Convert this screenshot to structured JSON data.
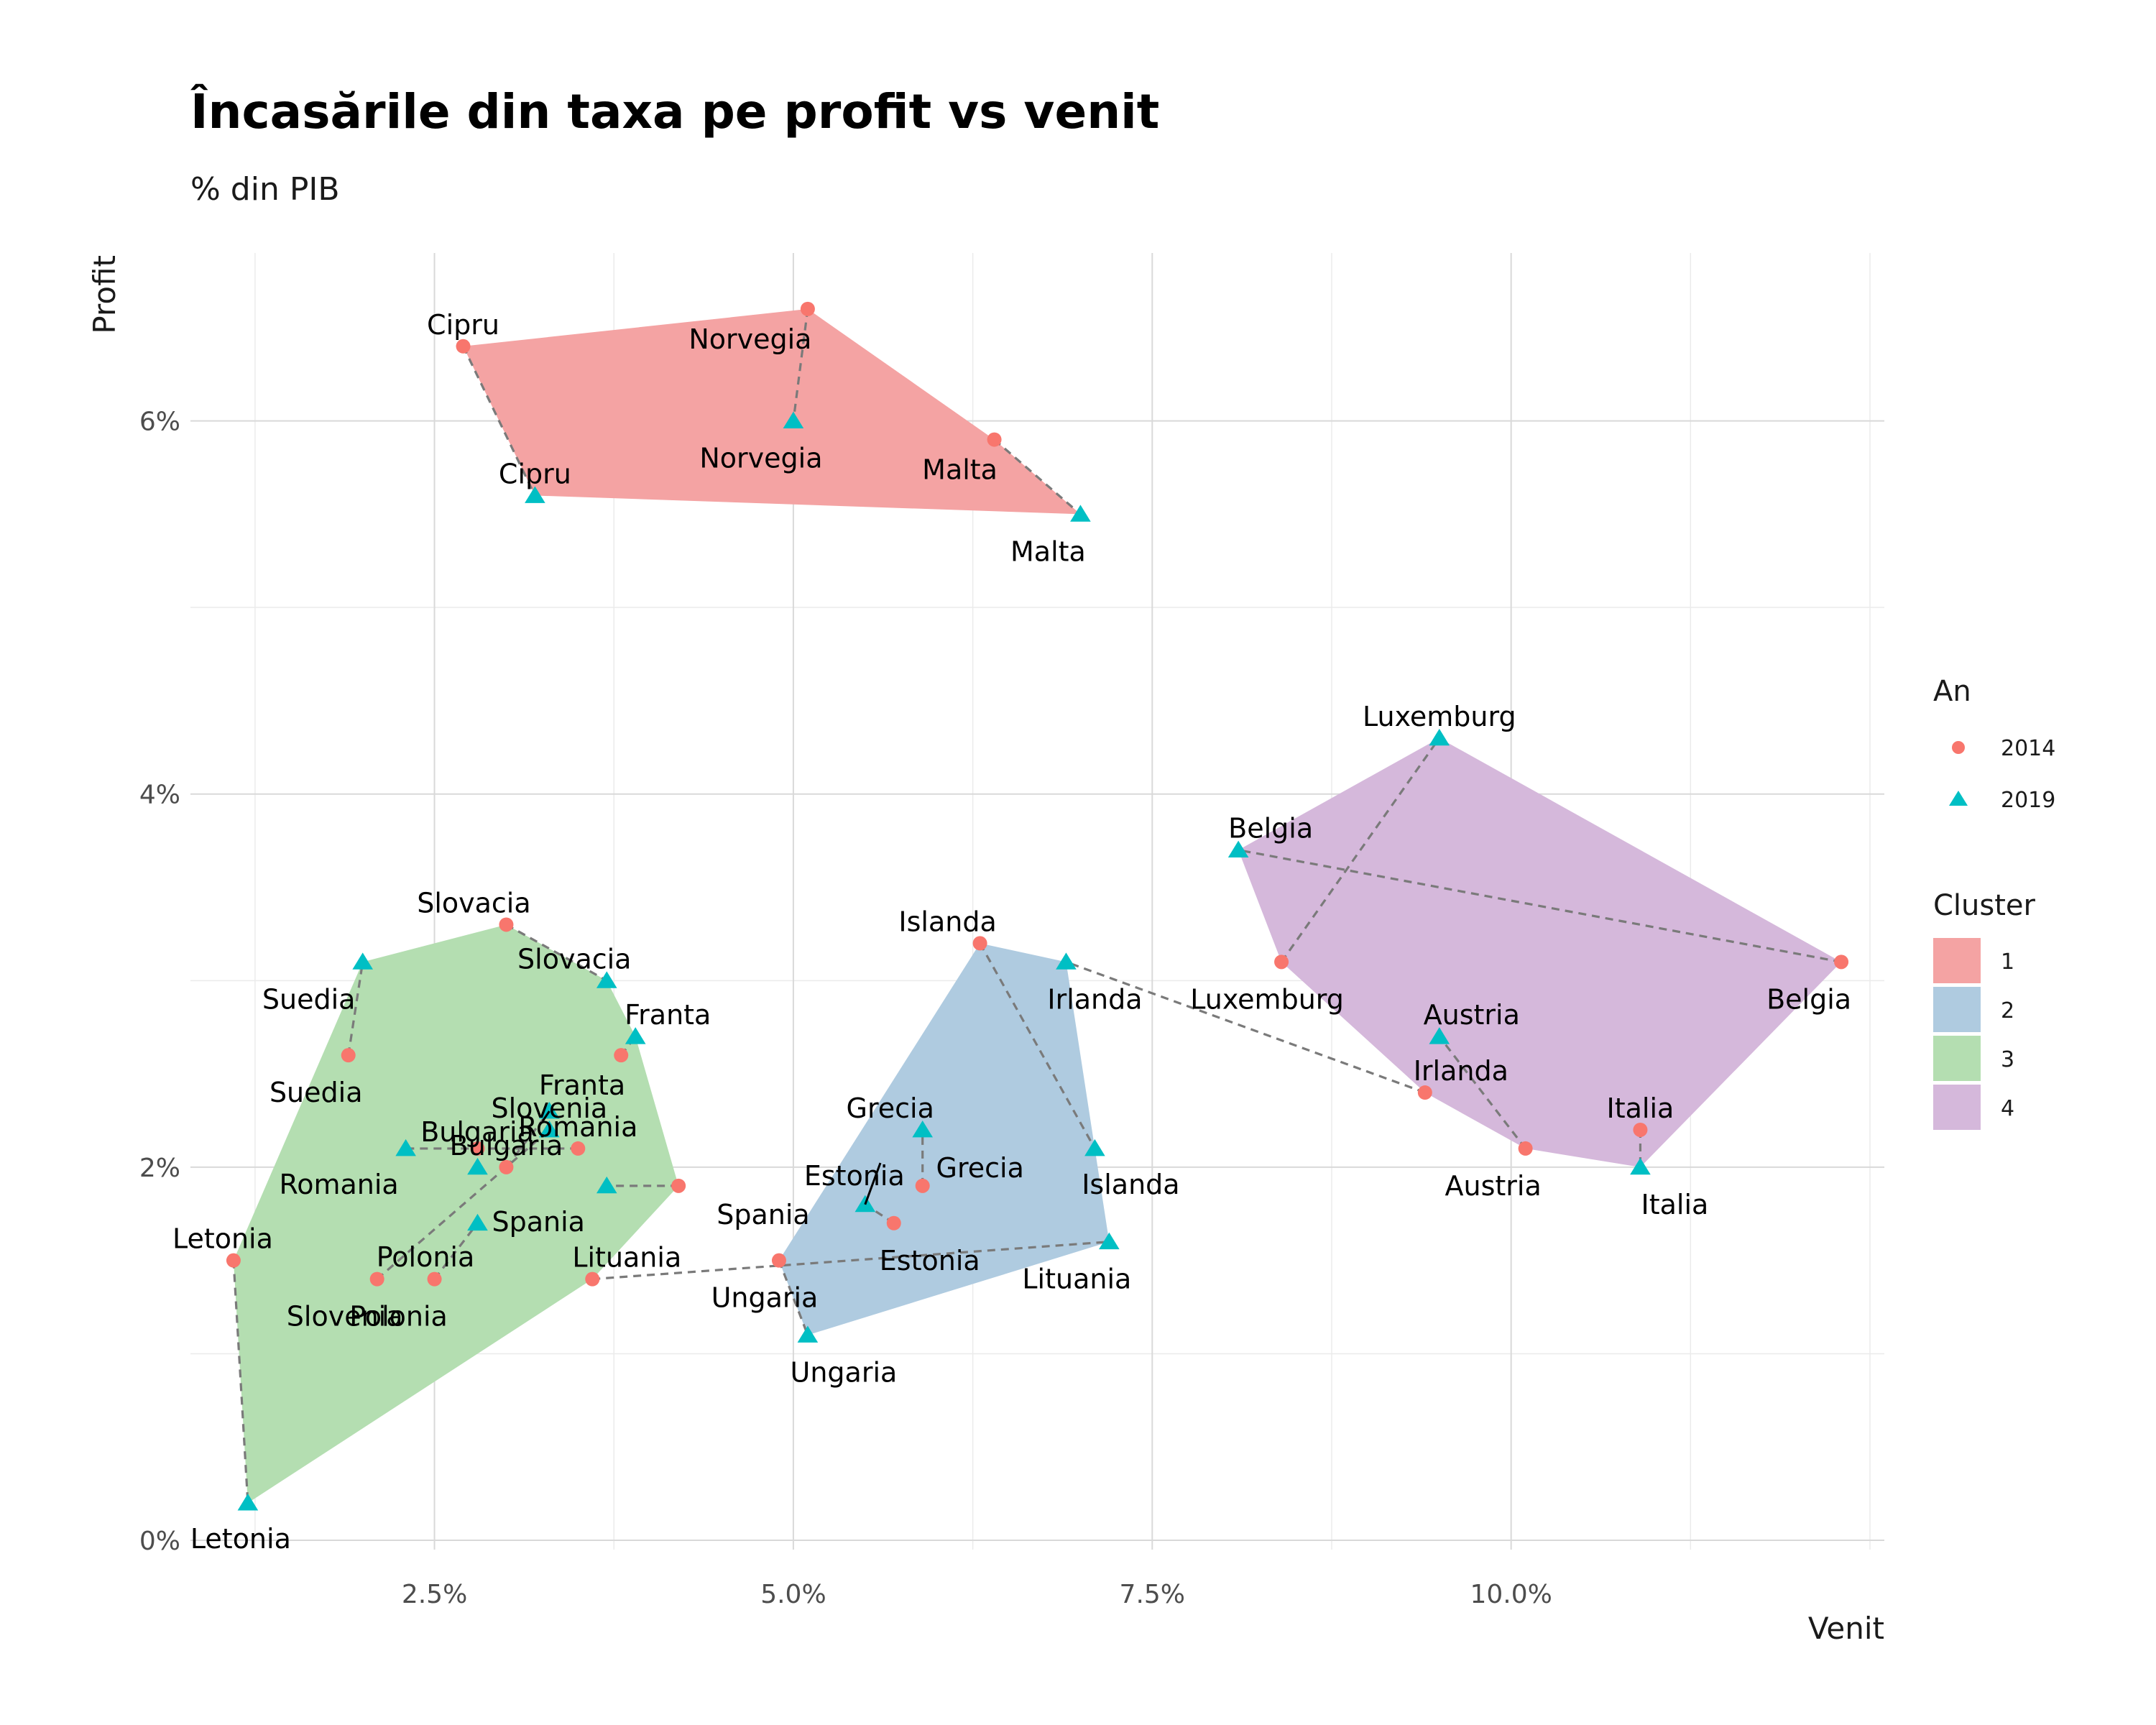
{
  "chart_data": {
    "type": "scatter",
    "title": "Încasările din taxa pe profit vs venit",
    "subtitle": "% din PIB",
    "xlabel": "Venit",
    "ylabel": "Profit",
    "xlim": [
      0.8,
      12.6
    ],
    "ylim": [
      -0.05,
      6.9
    ],
    "x_ticks": [
      2.5,
      5.0,
      7.5,
      10.0
    ],
    "x_tick_labels": [
      "2.5%",
      "5.0%",
      "7.5%",
      "10.0%"
    ],
    "y_ticks": [
      0,
      2,
      4,
      6
    ],
    "y_tick_labels": [
      "0%",
      "2%",
      "4%",
      "6%"
    ],
    "grid": true,
    "legend_an": {
      "title": "An",
      "items": [
        {
          "label": "2014",
          "color": "#F8766D",
          "shape": "circle"
        },
        {
          "label": "2019",
          "color": "#00BFC4",
          "shape": "triangle"
        }
      ]
    },
    "legend_cluster": {
      "title": "Cluster",
      "items": [
        {
          "label": "1",
          "color": "#F4A3A3"
        },
        {
          "label": "2",
          "color": "#AFCBE0"
        },
        {
          "label": "3",
          "color": "#B4DEB1"
        },
        {
          "label": "4",
          "color": "#D5B8DB"
        }
      ]
    },
    "legend_placement": "right",
    "points": [
      {
        "country": "Cipru",
        "year": "2014",
        "venit": 2.7,
        "profit": 6.4,
        "cluster": 1
      },
      {
        "country": "Cipru",
        "year": "2019",
        "venit": 3.2,
        "profit": 5.6,
        "cluster": 1
      },
      {
        "country": "Norvegia",
        "year": "2014",
        "venit": 5.1,
        "profit": 6.6,
        "cluster": 1
      },
      {
        "country": "Norvegia",
        "year": "2019",
        "venit": 5.0,
        "profit": 6.0,
        "cluster": 1
      },
      {
        "country": "Malta",
        "year": "2014",
        "venit": 6.4,
        "profit": 5.9,
        "cluster": 1
      },
      {
        "country": "Malta",
        "year": "2019",
        "venit": 7.0,
        "profit": 5.5,
        "cluster": 1
      },
      {
        "country": "Islanda",
        "year": "2014",
        "venit": 6.3,
        "profit": 3.2,
        "cluster": 2
      },
      {
        "country": "Islanda",
        "year": "2019",
        "venit": 7.1,
        "profit": 2.1,
        "cluster": 2
      },
      {
        "country": "Grecia",
        "year": "2014",
        "venit": 5.9,
        "profit": 1.9,
        "cluster": 2
      },
      {
        "country": "Grecia",
        "year": "2019",
        "venit": 5.9,
        "profit": 2.2,
        "cluster": 2
      },
      {
        "country": "Estonia",
        "year": "2014",
        "venit": 5.7,
        "profit": 1.7,
        "cluster": 2
      },
      {
        "country": "Estonia",
        "year": "2019",
        "venit": 5.5,
        "profit": 1.8,
        "cluster": 2
      },
      {
        "country": "Ungaria",
        "year": "2014",
        "venit": 4.9,
        "profit": 1.5,
        "cluster": 2
      },
      {
        "country": "Ungaria",
        "year": "2019",
        "venit": 5.1,
        "profit": 1.1,
        "cluster": 2
      },
      {
        "country": "Lituania",
        "year": "2014",
        "venit": 3.6,
        "profit": 1.4,
        "cluster": 3
      },
      {
        "country": "Lituania",
        "year": "2019",
        "venit": 7.2,
        "profit": 1.6,
        "cluster": 2
      },
      {
        "country": "Irlanda",
        "year": "2014",
        "venit": 9.4,
        "profit": 2.4,
        "cluster": 4
      },
      {
        "country": "Irlanda",
        "year": "2019",
        "venit": 6.9,
        "profit": 3.1,
        "cluster": 2
      },
      {
        "country": "Slovacia",
        "year": "2014",
        "venit": 3.0,
        "profit": 3.3,
        "cluster": 3
      },
      {
        "country": "Slovacia",
        "year": "2019",
        "venit": 3.7,
        "profit": 3.0,
        "cluster": 3
      },
      {
        "country": "Suedia",
        "year": "2014",
        "venit": 1.9,
        "profit": 2.6,
        "cluster": 3
      },
      {
        "country": "Suedia",
        "year": "2019",
        "venit": 2.0,
        "profit": 3.1,
        "cluster": 3
      },
      {
        "country": "Franta",
        "year": "2014",
        "venit": 3.8,
        "profit": 2.6,
        "cluster": 3
      },
      {
        "country": "Franta",
        "year": "2019",
        "venit": 3.9,
        "profit": 2.7,
        "cluster": 3
      },
      {
        "country": "Bulgaria",
        "year": "2014",
        "venit": 3.0,
        "profit": 2.0,
        "cluster": 3
      },
      {
        "country": "Bulgaria",
        "year": "2019",
        "venit": 3.3,
        "profit": 2.3,
        "cluster": 3
      },
      {
        "country": "Romania",
        "year": "2014",
        "venit": 3.5,
        "profit": 2.1,
        "cluster": 3
      },
      {
        "country": "Romania",
        "year": "2019",
        "venit": 2.3,
        "profit": 2.1,
        "cluster": 3
      },
      {
        "country": "Spania",
        "year": "2014",
        "venit": 4.2,
        "profit": 1.9,
        "cluster": 3
      },
      {
        "country": "Spania",
        "year": "2019",
        "venit": 3.7,
        "profit": 1.9,
        "cluster": 3
      },
      {
        "country": "Polonia",
        "year": "2014",
        "venit": 2.5,
        "profit": 1.4,
        "cluster": 3
      },
      {
        "country": "Polonia",
        "year": "2019",
        "venit": 2.8,
        "profit": 1.7,
        "cluster": 3
      },
      {
        "country": "Slovenia",
        "year": "2014",
        "venit": 2.1,
        "profit": 1.4,
        "cluster": 3
      },
      {
        "country": "Slovenia",
        "year": "2019",
        "venit": 3.3,
        "profit": 2.2,
        "cluster": 3
      },
      {
        "country": "Letonia",
        "year": "2014",
        "venit": 1.1,
        "profit": 1.5,
        "cluster": 3
      },
      {
        "country": "Letonia",
        "year": "2019",
        "venit": 1.2,
        "profit": 0.2,
        "cluster": 3
      },
      {
        "country": "Luxemburg",
        "year": "2014",
        "venit": 8.4,
        "profit": 3.1,
        "cluster": 4
      },
      {
        "country": "Luxemburg",
        "year": "2019",
        "venit": 9.5,
        "profit": 4.3,
        "cluster": 4
      },
      {
        "country": "Belgia",
        "year": "2014",
        "venit": 12.3,
        "profit": 3.1,
        "cluster": 4
      },
      {
        "country": "Belgia",
        "year": "2019",
        "venit": 8.1,
        "profit": 3.7,
        "cluster": 4
      },
      {
        "country": "Austria",
        "year": "2014",
        "venit": 10.1,
        "profit": 2.1,
        "cluster": 4
      },
      {
        "country": "Austria",
        "year": "2019",
        "venit": 9.5,
        "profit": 2.7,
        "cluster": 4
      },
      {
        "country": "Italia",
        "year": "2014",
        "venit": 10.9,
        "profit": 2.2,
        "cluster": 4
      },
      {
        "country": "Italia",
        "year": "2019",
        "venit": 10.9,
        "profit": 2.0,
        "cluster": 4
      },
      {
        "country": "",
        "year": "2019",
        "venit": 2.8,
        "profit": 2.0,
        "cluster": 3
      },
      {
        "country": "",
        "year": "2014",
        "venit": 2.8,
        "profit": 2.1,
        "cluster": 3
      }
    ]
  }
}
